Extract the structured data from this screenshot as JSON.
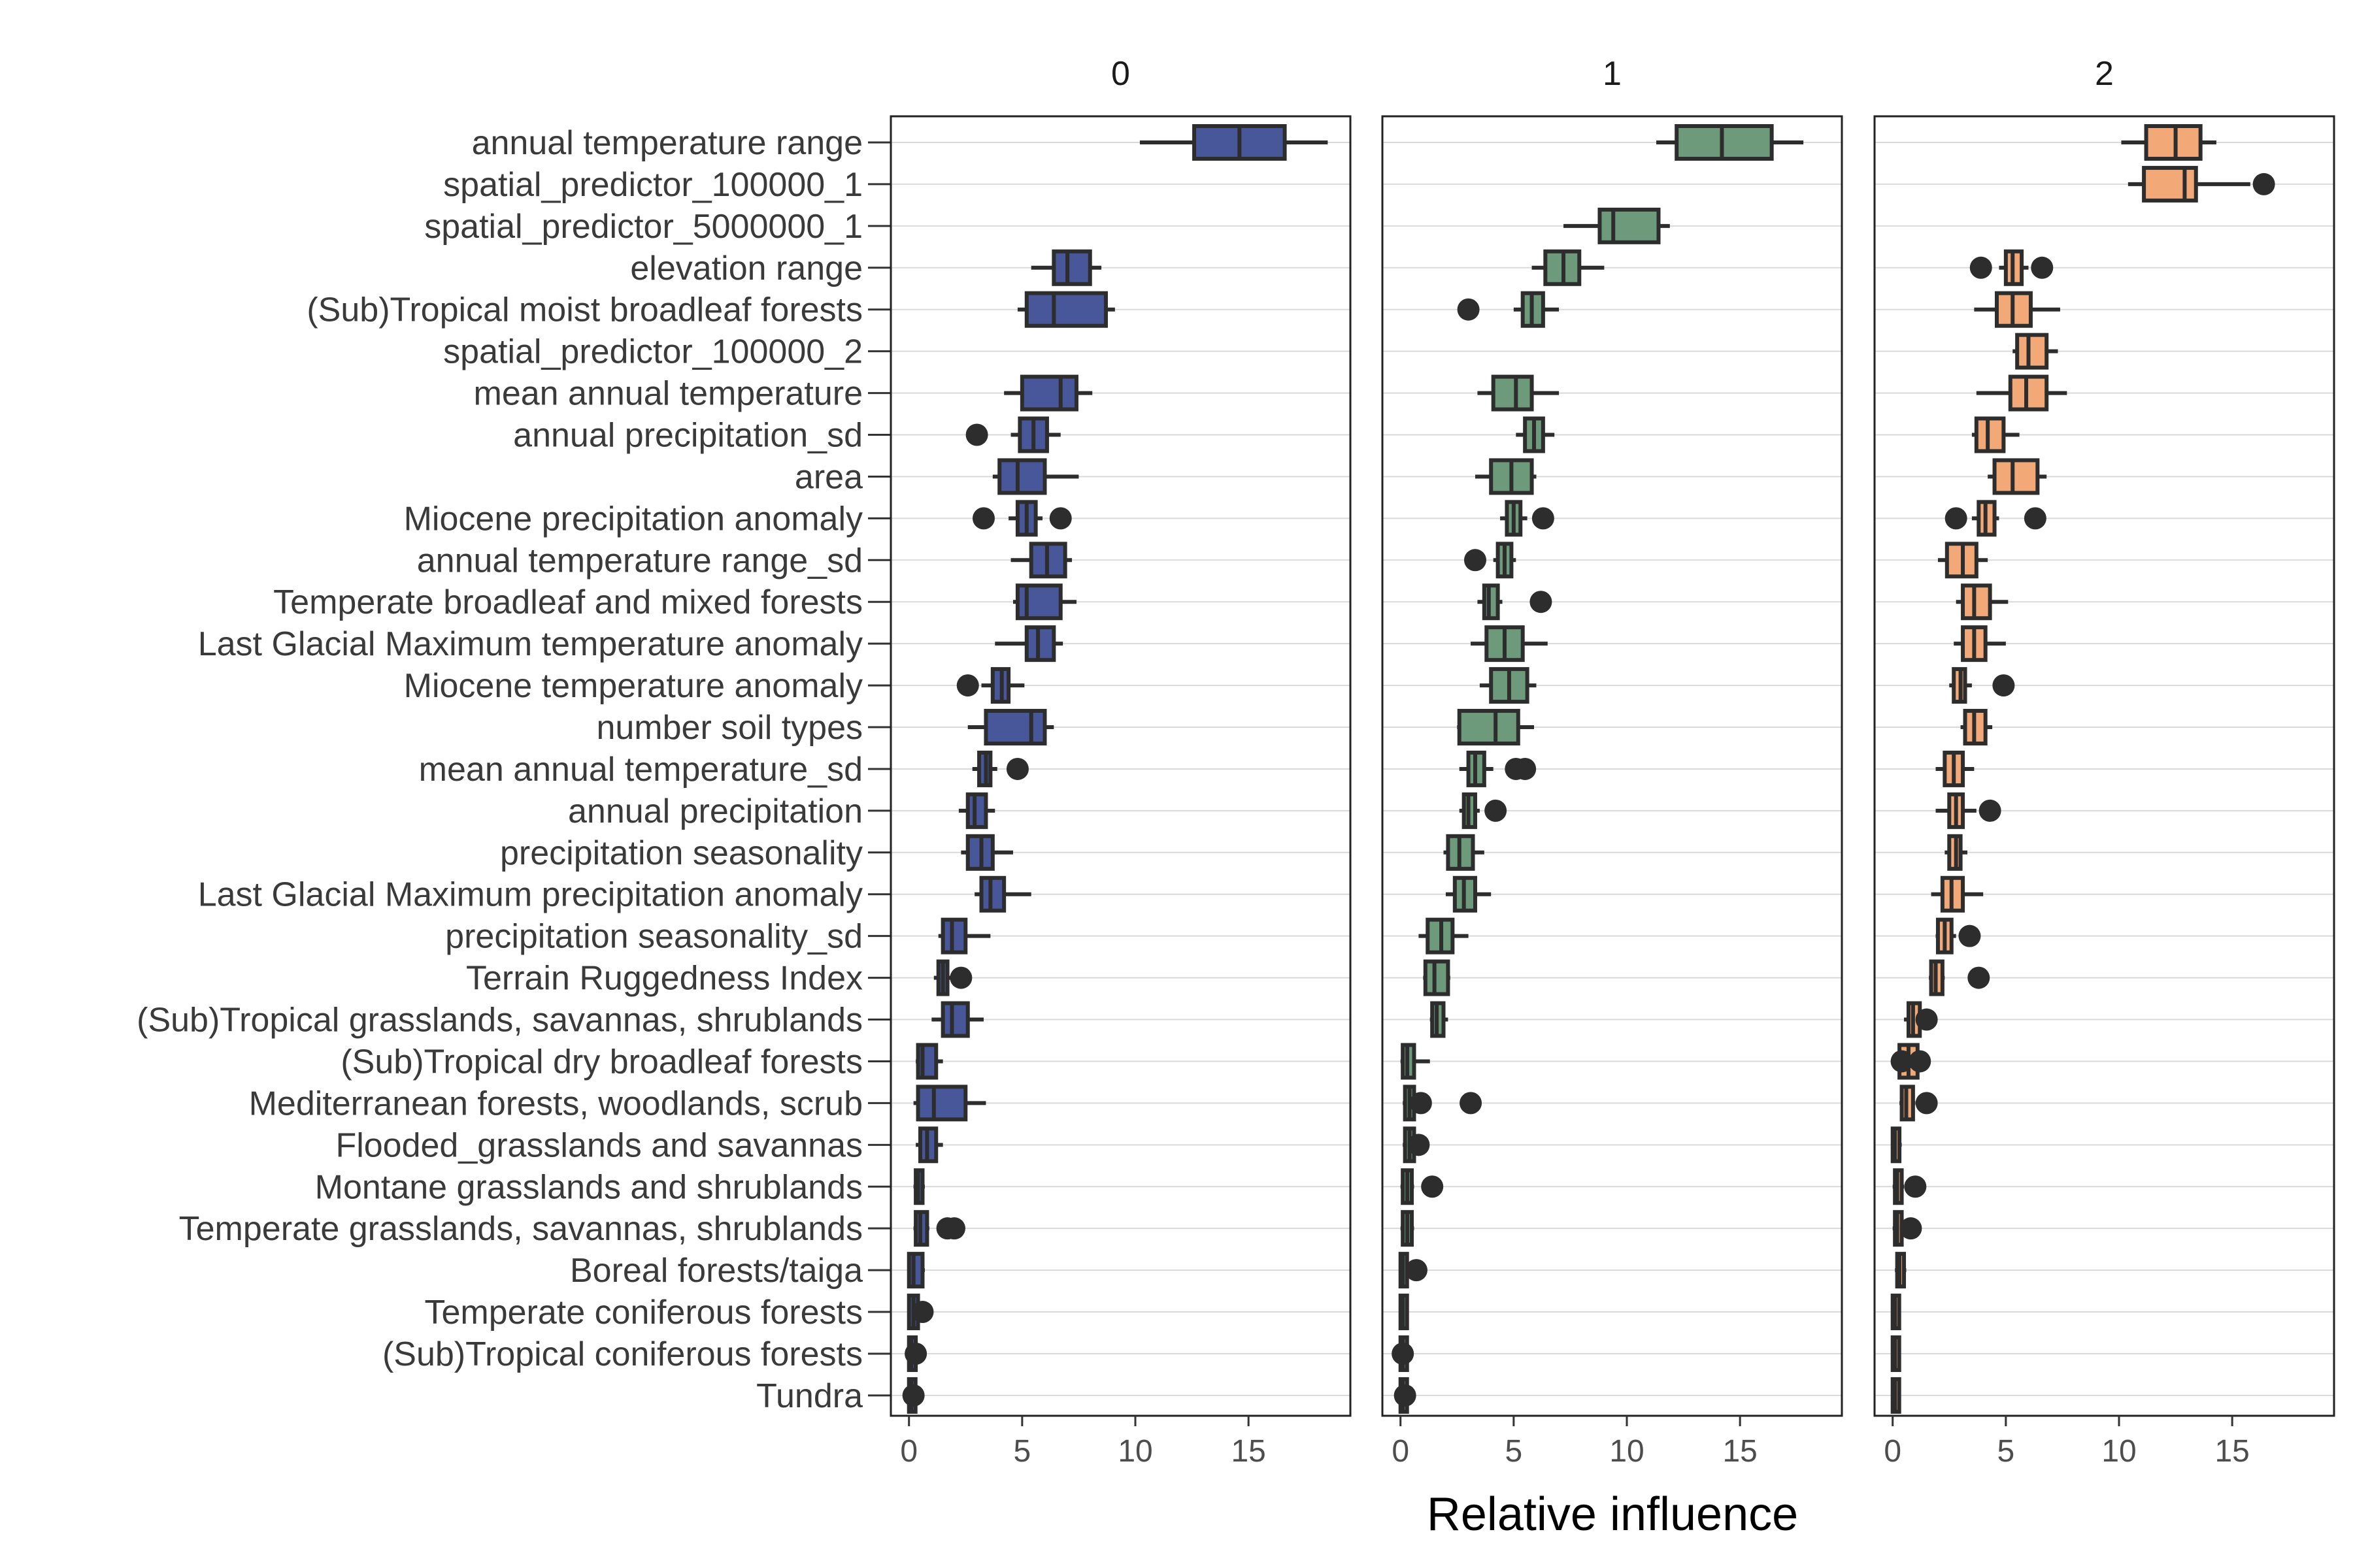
{
  "chart_data": {
    "type": "boxplot",
    "xlabel": "Relative influence",
    "ylabel": "",
    "xlim": [
      -0.8,
      19.5
    ],
    "x_ticks": [
      0,
      5,
      10,
      15
    ],
    "grid": "horizontal major lines",
    "box_outline_color": "#2d2d2d",
    "gridline_color": "#d9d9d9",
    "categories": [
      "annual temperature range",
      "spatial_predictor_100000_1",
      "spatial_predictor_5000000_1",
      "elevation range",
      "(Sub)Tropical moist broadleaf forests",
      "spatial_predictor_100000_2",
      "mean annual temperature",
      "annual precipitation_sd",
      "area",
      "Miocene precipitation anomaly",
      "annual temperature range_sd",
      "Temperate broadleaf and mixed forests",
      "Last Glacial Maximum temperature anomaly",
      "Miocene temperature anomaly",
      "number soil types",
      "mean annual temperature_sd",
      "annual precipitation",
      "precipitation seasonality",
      "Last Glacial Maximum precipitation anomaly",
      "precipitation seasonality_sd",
      "Terrain Ruggedness Index",
      "(Sub)Tropical grasslands, savannas, shrublands",
      "(Sub)Tropical dry broadleaf forests",
      "Mediterranean forests, woodlands, scrub",
      "Flooded_grasslands and savannas",
      "Montane grasslands and shrublands",
      "Temperate grasslands, savannas, shrublands",
      "Boreal forests/taiga",
      "Temperate coniferous forests",
      "(Sub)Tropical coniferous forests",
      "Tundra"
    ],
    "panels": [
      {
        "title": "0",
        "color": "#47579a",
        "boxes": [
          {
            "q1": 12.6,
            "median": 14.6,
            "q3": 16.6,
            "lo": 10.2,
            "hi": 18.5,
            "out": []
          },
          null,
          null,
          {
            "q1": 6.4,
            "median": 7.0,
            "q3": 8.0,
            "lo": 5.4,
            "hi": 8.5,
            "out": []
          },
          {
            "q1": 5.2,
            "median": 6.4,
            "q3": 8.7,
            "lo": 4.8,
            "hi": 9.1,
            "out": []
          },
          null,
          {
            "q1": 5.0,
            "median": 6.7,
            "q3": 7.4,
            "lo": 4.2,
            "hi": 8.1,
            "out": []
          },
          {
            "q1": 4.9,
            "median": 5.5,
            "q3": 6.1,
            "lo": 4.5,
            "hi": 6.7,
            "out": [
              3.0
            ]
          },
          {
            "q1": 4.0,
            "median": 4.8,
            "q3": 6.0,
            "lo": 3.7,
            "hi": 7.5,
            "out": []
          },
          {
            "q1": 4.8,
            "median": 5.2,
            "q3": 5.6,
            "lo": 4.4,
            "hi": 5.9,
            "out": [
              3.3,
              6.7
            ]
          },
          {
            "q1": 5.4,
            "median": 6.1,
            "q3": 6.9,
            "lo": 4.5,
            "hi": 7.2,
            "out": []
          },
          {
            "q1": 4.8,
            "median": 5.2,
            "q3": 6.7,
            "lo": 4.6,
            "hi": 7.4,
            "out": []
          },
          {
            "q1": 5.2,
            "median": 5.7,
            "q3": 6.4,
            "lo": 3.8,
            "hi": 6.8,
            "out": []
          },
          {
            "q1": 3.7,
            "median": 4.1,
            "q3": 4.4,
            "lo": 3.2,
            "hi": 5.1,
            "out": [
              2.6
            ]
          },
          {
            "q1": 3.4,
            "median": 5.4,
            "q3": 6.0,
            "lo": 2.6,
            "hi": 6.4,
            "out": []
          },
          {
            "q1": 3.1,
            "median": 3.4,
            "q3": 3.6,
            "lo": 2.8,
            "hi": 3.9,
            "out": [
              4.8
            ]
          },
          {
            "q1": 2.6,
            "median": 2.9,
            "q3": 3.4,
            "lo": 2.2,
            "hi": 3.8,
            "out": []
          },
          {
            "q1": 2.6,
            "median": 3.2,
            "q3": 3.7,
            "lo": 2.3,
            "hi": 4.6,
            "out": []
          },
          {
            "q1": 3.2,
            "median": 3.6,
            "q3": 4.2,
            "lo": 2.9,
            "hi": 5.4,
            "out": []
          },
          {
            "q1": 1.5,
            "median": 1.9,
            "q3": 2.5,
            "lo": 1.3,
            "hi": 3.6,
            "out": []
          },
          {
            "q1": 1.3,
            "median": 1.5,
            "q3": 1.7,
            "lo": 1.1,
            "hi": 1.9,
            "out": [
              2.3
            ]
          },
          {
            "q1": 1.5,
            "median": 1.9,
            "q3": 2.6,
            "lo": 1.0,
            "hi": 3.3,
            "out": []
          },
          {
            "q1": 0.4,
            "median": 0.6,
            "q3": 1.2,
            "lo": 0.3,
            "hi": 1.5,
            "out": []
          },
          {
            "q1": 0.4,
            "median": 1.1,
            "q3": 2.5,
            "lo": 0.2,
            "hi": 3.4,
            "out": []
          },
          {
            "q1": 0.5,
            "median": 0.8,
            "q3": 1.2,
            "lo": 0.3,
            "hi": 1.5,
            "out": []
          },
          {
            "q1": 0.3,
            "median": 0.4,
            "q3": 0.6,
            "lo": 0.2,
            "hi": 0.7,
            "out": []
          },
          {
            "q1": 0.3,
            "median": 0.5,
            "q3": 0.8,
            "lo": 0.2,
            "hi": 0.9,
            "out": [
              1.7,
              2.0
            ]
          },
          {
            "q1": 0.0,
            "median": 0.2,
            "q3": 0.6,
            "lo": 0.0,
            "hi": 0.7,
            "out": []
          },
          {
            "q1": 0.0,
            "median": 0.2,
            "q3": 0.4,
            "lo": 0.0,
            "hi": 0.5,
            "out": [
              0.6
            ]
          },
          {
            "q1": 0.0,
            "median": 0.1,
            "q3": 0.3,
            "lo": 0.0,
            "hi": 0.4,
            "out": [
              0.3
            ]
          },
          {
            "q1": 0.0,
            "median": 0.1,
            "q3": 0.2,
            "lo": 0.0,
            "hi": 0.3,
            "out": [
              0.2
            ]
          }
        ]
      },
      {
        "title": "1",
        "color": "#6d9a7a",
        "boxes": [
          {
            "q1": 12.2,
            "median": 14.2,
            "q3": 16.4,
            "lo": 11.3,
            "hi": 17.8,
            "out": []
          },
          null,
          {
            "q1": 8.8,
            "median": 9.4,
            "q3": 11.4,
            "lo": 7.2,
            "hi": 11.9,
            "out": []
          },
          {
            "q1": 6.4,
            "median": 7.2,
            "q3": 7.9,
            "lo": 5.8,
            "hi": 9.0,
            "out": []
          },
          {
            "q1": 5.4,
            "median": 5.8,
            "q3": 6.3,
            "lo": 5.0,
            "hi": 7.0,
            "out": [
              3.0
            ]
          },
          null,
          {
            "q1": 4.1,
            "median": 5.1,
            "q3": 5.8,
            "lo": 3.4,
            "hi": 7.0,
            "out": []
          },
          {
            "q1": 5.5,
            "median": 5.9,
            "q3": 6.3,
            "lo": 5.1,
            "hi": 6.8,
            "out": []
          },
          {
            "q1": 4.0,
            "median": 4.9,
            "q3": 5.8,
            "lo": 3.3,
            "hi": 6.0,
            "out": []
          },
          {
            "q1": 4.7,
            "median": 5.0,
            "q3": 5.3,
            "lo": 4.4,
            "hi": 5.6,
            "out": [
              6.3
            ]
          },
          {
            "q1": 4.3,
            "median": 4.6,
            "q3": 4.9,
            "lo": 4.1,
            "hi": 5.1,
            "out": [
              3.3
            ]
          },
          {
            "q1": 3.7,
            "median": 3.9,
            "q3": 4.3,
            "lo": 3.4,
            "hi": 4.5,
            "out": [
              6.2
            ]
          },
          {
            "q1": 3.8,
            "median": 4.6,
            "q3": 5.4,
            "lo": 3.1,
            "hi": 6.5,
            "out": []
          },
          {
            "q1": 4.0,
            "median": 4.8,
            "q3": 5.6,
            "lo": 3.5,
            "hi": 6.0,
            "out": []
          },
          {
            "q1": 2.6,
            "median": 4.2,
            "q3": 5.2,
            "lo": 2.5,
            "hi": 5.9,
            "out": []
          },
          {
            "q1": 3.0,
            "median": 3.3,
            "q3": 3.7,
            "lo": 2.6,
            "hi": 4.1,
            "out": [
              5.1,
              5.5
            ]
          },
          {
            "q1": 2.8,
            "median": 3.0,
            "q3": 3.3,
            "lo": 2.6,
            "hi": 3.5,
            "out": [
              4.2
            ]
          },
          {
            "q1": 2.1,
            "median": 2.6,
            "q3": 3.2,
            "lo": 1.9,
            "hi": 3.7,
            "out": []
          },
          {
            "q1": 2.4,
            "median": 2.8,
            "q3": 3.3,
            "lo": 2.0,
            "hi": 4.0,
            "out": []
          },
          {
            "q1": 1.2,
            "median": 1.8,
            "q3": 2.3,
            "lo": 0.8,
            "hi": 3.0,
            "out": []
          },
          {
            "q1": 1.1,
            "median": 1.5,
            "q3": 2.1,
            "lo": 1.0,
            "hi": 2.2,
            "out": []
          },
          {
            "q1": 1.4,
            "median": 1.6,
            "q3": 1.9,
            "lo": 1.3,
            "hi": 2.1,
            "out": []
          },
          {
            "q1": 0.1,
            "median": 0.3,
            "q3": 0.6,
            "lo": 0.0,
            "hi": 1.3,
            "out": []
          },
          {
            "q1": 0.2,
            "median": 0.4,
            "q3": 0.6,
            "lo": 0.1,
            "hi": 0.7,
            "out": [
              0.9,
              3.1
            ]
          },
          {
            "q1": 0.2,
            "median": 0.4,
            "q3": 0.6,
            "lo": 0.1,
            "hi": 0.7,
            "out": [
              0.8
            ]
          },
          {
            "q1": 0.1,
            "median": 0.3,
            "q3": 0.5,
            "lo": 0.0,
            "hi": 0.6,
            "out": [
              1.4
            ]
          },
          {
            "q1": 0.1,
            "median": 0.3,
            "q3": 0.5,
            "lo": 0.0,
            "hi": 0.6,
            "out": []
          },
          {
            "q1": 0.0,
            "median": 0.1,
            "q3": 0.2,
            "lo": 0.0,
            "hi": 0.3,
            "out": [
              0.7
            ]
          },
          {
            "q1": 0.0,
            "median": 0.1,
            "q3": 0.2,
            "lo": 0.0,
            "hi": 0.3,
            "out": []
          },
          {
            "q1": 0.0,
            "median": 0.1,
            "q3": 0.2,
            "lo": 0.0,
            "hi": 0.2,
            "out": [
              0.1
            ]
          },
          {
            "q1": 0.0,
            "median": 0.1,
            "q3": 0.2,
            "lo": 0.0,
            "hi": 0.2,
            "out": [
              0.2
            ]
          }
        ]
      },
      {
        "title": "2",
        "color": "#f2a977",
        "boxes": [
          {
            "q1": 11.2,
            "median": 12.5,
            "q3": 13.6,
            "lo": 10.1,
            "hi": 14.3,
            "out": []
          },
          {
            "q1": 11.1,
            "median": 12.9,
            "q3": 13.4,
            "lo": 10.4,
            "hi": 15.8,
            "out": [
              16.4
            ]
          },
          null,
          {
            "q1": 5.0,
            "median": 5.3,
            "q3": 5.7,
            "lo": 4.7,
            "hi": 6.0,
            "out": [
              3.9,
              6.6
            ]
          },
          {
            "q1": 4.6,
            "median": 5.3,
            "q3": 6.1,
            "lo": 3.6,
            "hi": 7.4,
            "out": []
          },
          {
            "q1": 5.5,
            "median": 6.0,
            "q3": 6.8,
            "lo": 5.3,
            "hi": 7.3,
            "out": []
          },
          {
            "q1": 5.2,
            "median": 5.9,
            "q3": 6.8,
            "lo": 3.7,
            "hi": 7.7,
            "out": []
          },
          {
            "q1": 3.7,
            "median": 4.2,
            "q3": 4.9,
            "lo": 3.5,
            "hi": 5.6,
            "out": []
          },
          {
            "q1": 4.5,
            "median": 5.3,
            "q3": 6.4,
            "lo": 4.2,
            "hi": 6.8,
            "out": []
          },
          {
            "q1": 3.8,
            "median": 4.1,
            "q3": 4.5,
            "lo": 3.5,
            "hi": 4.7,
            "out": [
              2.8,
              6.3
            ]
          },
          {
            "q1": 2.4,
            "median": 3.1,
            "q3": 3.7,
            "lo": 2.0,
            "hi": 4.2,
            "out": []
          },
          {
            "q1": 3.1,
            "median": 3.6,
            "q3": 4.3,
            "lo": 2.8,
            "hi": 5.1,
            "out": []
          },
          {
            "q1": 3.1,
            "median": 3.6,
            "q3": 4.1,
            "lo": 2.7,
            "hi": 5.0,
            "out": []
          },
          {
            "q1": 2.7,
            "median": 3.0,
            "q3": 3.2,
            "lo": 2.5,
            "hi": 3.5,
            "out": [
              4.9
            ]
          },
          {
            "q1": 3.2,
            "median": 3.6,
            "q3": 4.1,
            "lo": 3.0,
            "hi": 4.4,
            "out": []
          },
          {
            "q1": 2.3,
            "median": 2.7,
            "q3": 3.1,
            "lo": 1.9,
            "hi": 3.6,
            "out": []
          },
          {
            "q1": 2.5,
            "median": 2.8,
            "q3": 3.1,
            "lo": 1.9,
            "hi": 3.7,
            "out": [
              4.3
            ]
          },
          {
            "q1": 2.5,
            "median": 2.8,
            "q3": 3.0,
            "lo": 2.3,
            "hi": 3.3,
            "out": []
          },
          {
            "q1": 2.2,
            "median": 2.6,
            "q3": 3.1,
            "lo": 1.7,
            "hi": 4.0,
            "out": []
          },
          {
            "q1": 2.0,
            "median": 2.3,
            "q3": 2.6,
            "lo": 1.9,
            "hi": 2.8,
            "out": [
              3.4
            ]
          },
          {
            "q1": 1.7,
            "median": 1.9,
            "q3": 2.2,
            "lo": 1.6,
            "hi": 2.3,
            "out": [
              3.8
            ]
          },
          {
            "q1": 0.7,
            "median": 0.9,
            "q3": 1.2,
            "lo": 0.5,
            "hi": 1.3,
            "out": [
              1.5
            ]
          },
          {
            "q1": 0.3,
            "median": 0.7,
            "q3": 1.1,
            "lo": 0.1,
            "hi": 1.3,
            "out": [
              0.4,
              1.2
            ]
          },
          {
            "q1": 0.4,
            "median": 0.6,
            "q3": 0.9,
            "lo": 0.3,
            "hi": 1.0,
            "out": [
              1.5
            ]
          },
          {
            "q1": 0.0,
            "median": 0.1,
            "q3": 0.3,
            "lo": 0.0,
            "hi": 0.4,
            "out": []
          },
          {
            "q1": 0.1,
            "median": 0.2,
            "q3": 0.4,
            "lo": 0.0,
            "hi": 0.5,
            "out": [
              1.0
            ]
          },
          {
            "q1": 0.1,
            "median": 0.2,
            "q3": 0.4,
            "lo": 0.0,
            "hi": 0.5,
            "out": [
              0.8
            ]
          },
          {
            "q1": 0.2,
            "median": 0.3,
            "q3": 0.5,
            "lo": 0.1,
            "hi": 0.6,
            "out": []
          },
          {
            "q1": 0.0,
            "median": 0.1,
            "q3": 0.2,
            "lo": 0.0,
            "hi": 0.3,
            "out": []
          },
          {
            "q1": 0.0,
            "median": 0.1,
            "q3": 0.2,
            "lo": 0.0,
            "hi": 0.3,
            "out": []
          },
          {
            "q1": 0.0,
            "median": 0.1,
            "q3": 0.2,
            "lo": 0.0,
            "hi": 0.3,
            "out": []
          }
        ]
      }
    ]
  }
}
